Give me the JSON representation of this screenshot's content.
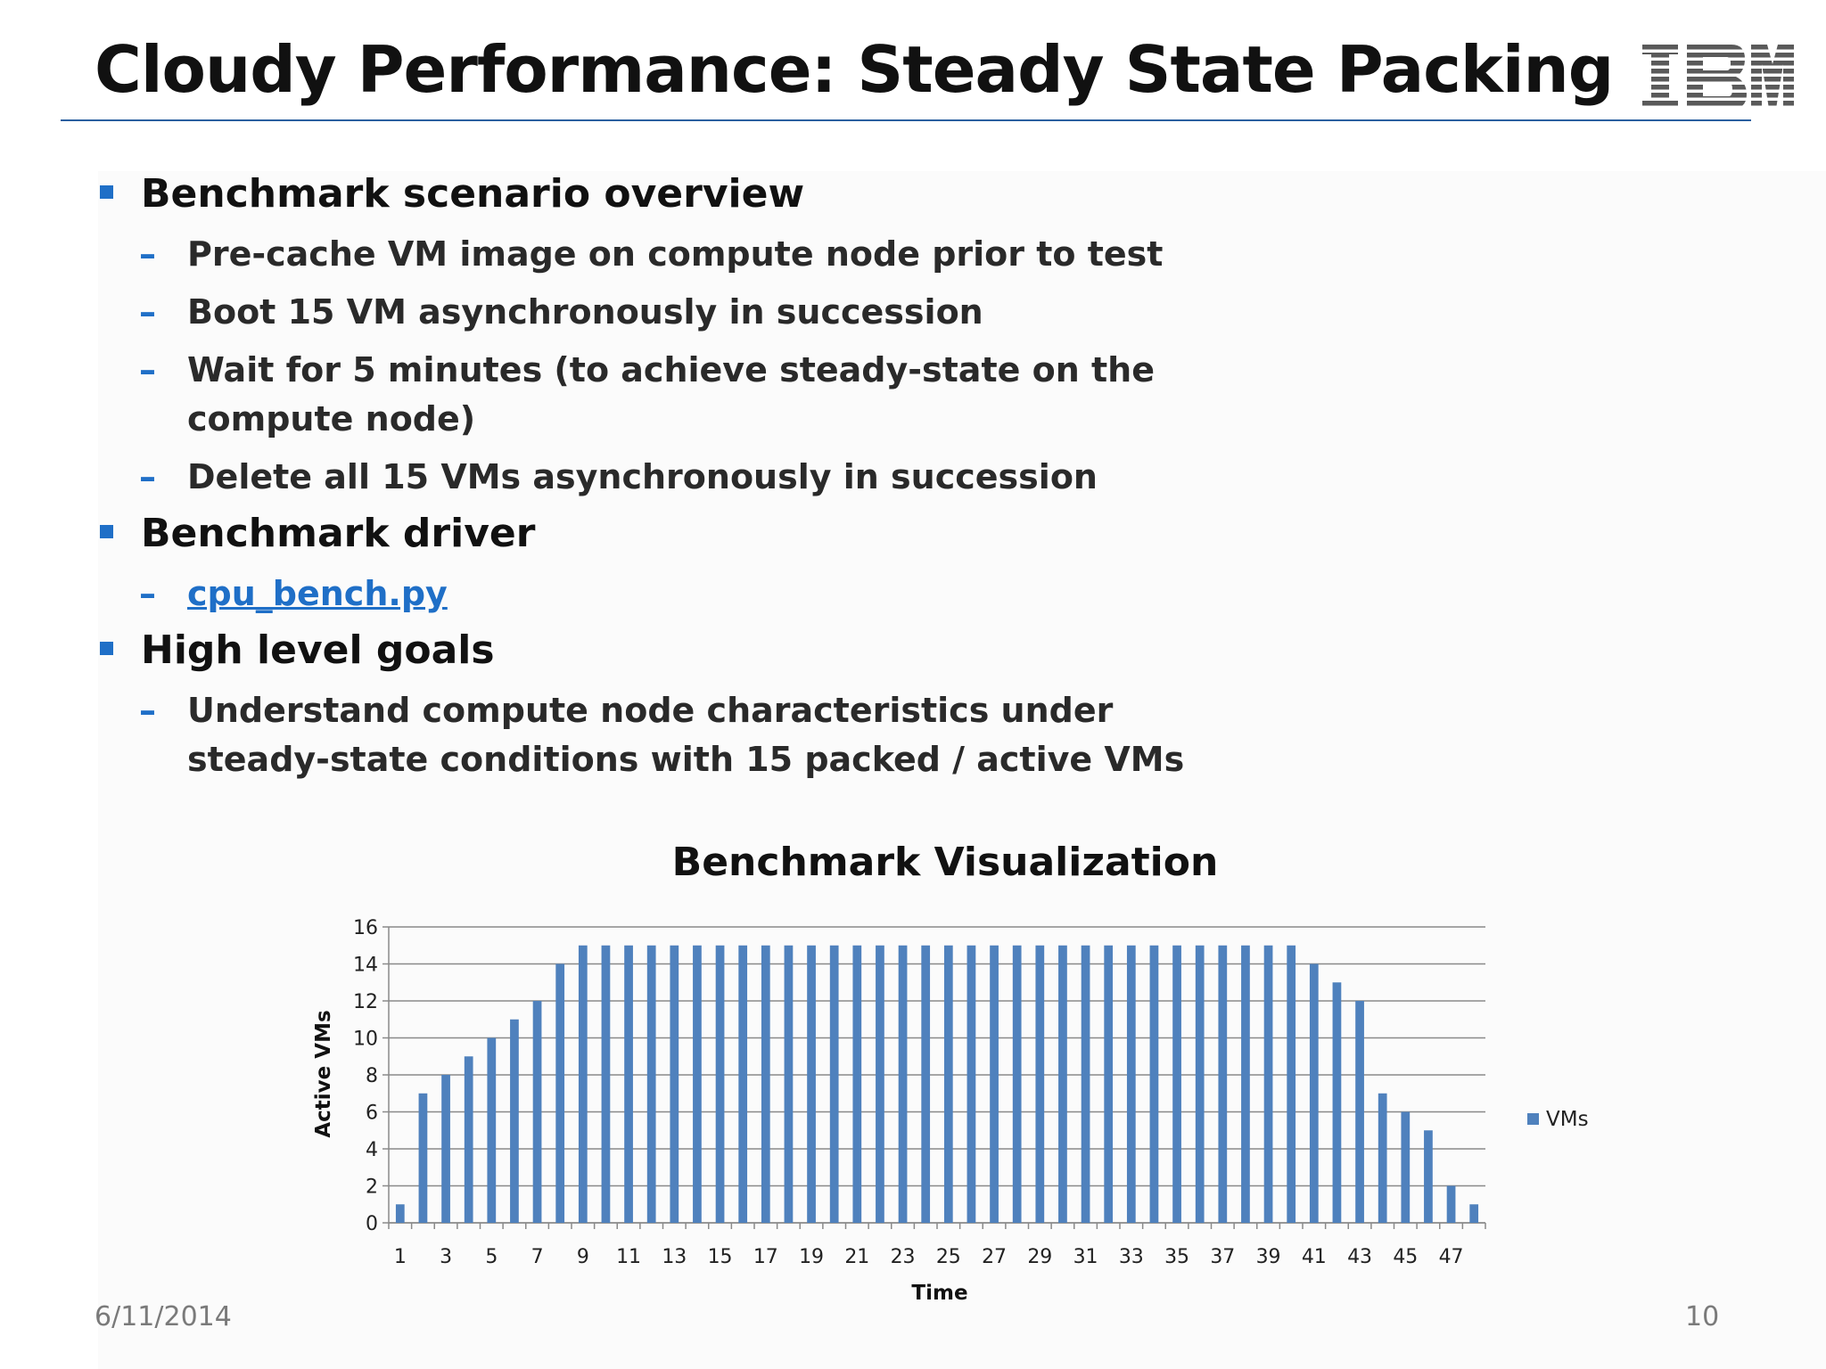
{
  "slide": {
    "title": "Cloudy Performance: Steady State Packing",
    "logo_text": "IBM",
    "date": "6/11/2014",
    "page_number": "10"
  },
  "bullets": [
    {
      "text": "Benchmark scenario overview",
      "subs": [
        {
          "text": "Pre-cache VM image on compute node prior to test"
        },
        {
          "text": "Boot 15 VM asynchronously in succession"
        },
        {
          "text": "Wait for 5 minutes (to achieve steady-state on the",
          "cont": "compute node)"
        },
        {
          "text": "Delete all 15 VMs asynchronously in succession"
        }
      ]
    },
    {
      "text": "Benchmark driver",
      "subs": [
        {
          "text": "cpu_bench.py",
          "link": true
        }
      ]
    },
    {
      "text": "High level goals",
      "subs": [
        {
          "text": "Understand compute node characteristics under",
          "cont": "steady-state conditions with 15 packed / active VMs"
        }
      ]
    }
  ],
  "colors": {
    "accent": "#1f6fc7",
    "bar": "#4f81bd",
    "rule": "#2a5fa0"
  },
  "chart_data": {
    "type": "bar",
    "title": "Benchmark Visualization",
    "xlabel": "Time",
    "ylabel": "Active VMs",
    "legend": "VMs",
    "legend_position": "right",
    "grid": true,
    "ylim": [
      0,
      16
    ],
    "yticks": [
      0,
      2,
      4,
      6,
      8,
      10,
      12,
      14,
      16
    ],
    "categories": [
      1,
      2,
      3,
      4,
      5,
      6,
      7,
      8,
      9,
      10,
      11,
      12,
      13,
      14,
      15,
      16,
      17,
      18,
      19,
      20,
      21,
      22,
      23,
      24,
      25,
      26,
      27,
      28,
      29,
      30,
      31,
      32,
      33,
      34,
      35,
      36,
      37,
      38,
      39,
      40,
      41,
      42,
      43,
      44,
      45,
      46,
      47,
      48
    ],
    "xtick_labels_shown": [
      1,
      3,
      5,
      7,
      9,
      11,
      13,
      15,
      17,
      19,
      21,
      23,
      25,
      27,
      29,
      31,
      33,
      35,
      37,
      39,
      41,
      43,
      45,
      47
    ],
    "series": [
      {
        "name": "VMs",
        "values": [
          1,
          7,
          8,
          9,
          10,
          11,
          12,
          14,
          15,
          15,
          15,
          15,
          15,
          15,
          15,
          15,
          15,
          15,
          15,
          15,
          15,
          15,
          15,
          15,
          15,
          15,
          15,
          15,
          15,
          15,
          15,
          15,
          15,
          15,
          15,
          15,
          15,
          15,
          15,
          15,
          14,
          13,
          12,
          7,
          6,
          5,
          2,
          1
        ]
      }
    ]
  }
}
